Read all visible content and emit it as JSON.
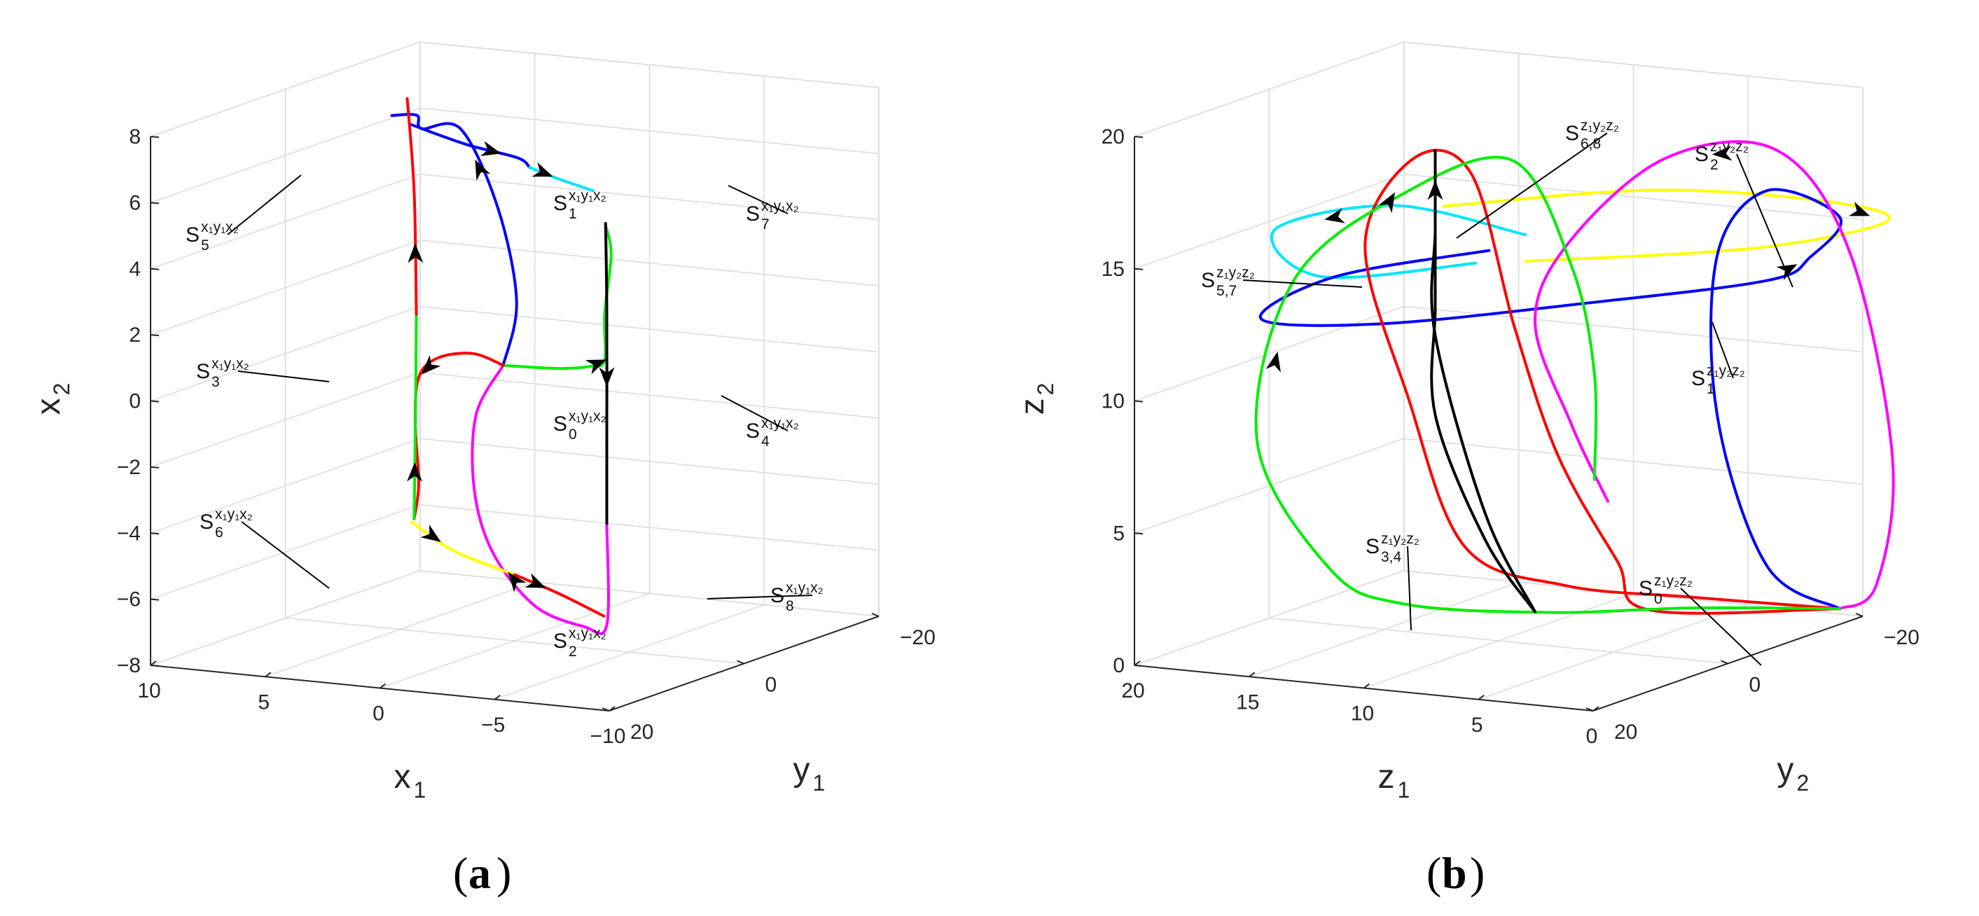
{
  "colors": {
    "blue": "#0000ff",
    "cyan": "#00e5ff",
    "green": "#00ee00",
    "black": "#000000",
    "red": "#ff0000",
    "magenta": "#ff00ff",
    "yellow": "#ffff00"
  },
  "chart_data": [
    {
      "id": "a",
      "type": "line",
      "panel_label": "a",
      "title": "",
      "axes": {
        "x": {
          "label": "x",
          "sub": "1",
          "ticks": [
            "10",
            "5",
            "0",
            "−5",
            "−10"
          ]
        },
        "y": {
          "label": "y",
          "sub": "1",
          "ticks": [
            "−20",
            "0",
            "20"
          ]
        },
        "z": {
          "label": "x",
          "sub": "2",
          "ticks": [
            "−8",
            "−6",
            "−4",
            "−2",
            "0",
            "2",
            "4",
            "6",
            "8"
          ]
        }
      },
      "xlim": [
        -10,
        10
      ],
      "ylim": [
        -20,
        20
      ],
      "zlim": [
        -8,
        8
      ],
      "grid": true,
      "annotations": [
        {
          "base": "S",
          "sub": "5",
          "sup": "x₁y₁x₂"
        },
        {
          "base": "S",
          "sub": "1",
          "sup": "x₁y₁x₂"
        },
        {
          "base": "S",
          "sub": "7",
          "sup": "x₁y₁x₂"
        },
        {
          "base": "S",
          "sub": "3",
          "sup": "x₁y₁x₂"
        },
        {
          "base": "S",
          "sub": "0",
          "sup": "x₁y₁x₂"
        },
        {
          "base": "S",
          "sub": "4",
          "sup": "x₁y₁x₂"
        },
        {
          "base": "S",
          "sub": "6",
          "sup": "x₁y₁x₂"
        },
        {
          "base": "S",
          "sub": "2",
          "sup": "x₁y₁x₂"
        },
        {
          "base": "S",
          "sub": "8",
          "sup": "x₁y₁x₂"
        }
      ],
      "series": [
        {
          "color": "blue",
          "points": [
            [
              0.5,
              0,
              0.3
            ],
            [
              0.8,
              -3,
              2
            ],
            [
              2.5,
              -6,
              4.5
            ],
            [
              5,
              -9,
              6.5
            ],
            [
              7,
              -10,
              6.3
            ],
            [
              7.5,
              -11,
              6.6
            ],
            [
              8,
              -9,
              6.7
            ]
          ]
        },
        {
          "color": "blue",
          "points": [
            [
              7.5,
              -10,
              6.4
            ],
            [
              3,
              -3,
              6.6
            ],
            [
              -1,
              3,
              6.9
            ],
            [
              -3,
              8,
              7.1
            ]
          ]
        },
        {
          "color": "cyan",
          "points": [
            [
              -3,
              8,
              7.1
            ],
            [
              -6,
              14,
              7.4
            ],
            [
              -9,
              19,
              7.6
            ]
          ]
        },
        {
          "color": "green",
          "points": [
            [
              0.5,
              0,
              0.3
            ],
            [
              -2,
              4,
              0.7
            ],
            [
              -5,
              10,
              1.3
            ],
            [
              -8,
              16,
              2
            ],
            [
              -9.5,
              19,
              2.5
            ],
            [
              -9.8,
              20,
              4
            ],
            [
              -9.2,
              17,
              5.5
            ],
            [
              -9.3,
              18,
              6.4
            ]
          ]
        },
        {
          "color": "black",
          "points": [
            [
              -9.4,
              18.5,
              6.6
            ],
            [
              -9.6,
              19,
              4
            ],
            [
              -9.6,
              19,
              0
            ],
            [
              -9.6,
              19,
              -2.5
            ]
          ]
        },
        {
          "color": "magenta",
          "points": [
            [
              -9.6,
              19,
              -2.5
            ],
            [
              -9.6,
              19,
              -5.5
            ],
            [
              -8,
              17,
              -5.8
            ],
            [
              -5,
              14,
              -5.6
            ],
            [
              -2,
              10,
              -4.5
            ],
            [
              0,
              6,
              -3
            ],
            [
              0.8,
              3,
              -1
            ],
            [
              0.5,
              0,
              0.3
            ]
          ]
        },
        {
          "color": "red",
          "points": [
            [
              0.5,
              0,
              0.3
            ],
            [
              3,
              -4,
              0.2
            ],
            [
              6,
              -9,
              -0.5
            ],
            [
              8,
              -13,
              -1.5
            ],
            [
              8.6,
              -14.5,
              -3
            ],
            [
              8.3,
              -14,
              -4.8
            ],
            [
              8.5,
              -14,
              -5.9
            ]
          ]
        },
        {
          "color": "green",
          "points": [
            [
              8.5,
              -14,
              -5.9
            ],
            [
              8.3,
              -13.5,
              -3
            ],
            [
              8.4,
              -14,
              0.3
            ]
          ]
        },
        {
          "color": "red",
          "points": [
            [
              8.4,
              -14,
              0.3
            ],
            [
              8.5,
              -14,
              4
            ],
            [
              8.8,
              -14,
              6.8
            ]
          ]
        },
        {
          "color": "yellow",
          "points": [
            [
              8.6,
              -14,
              -6
            ],
            [
              5,
              -8,
              -6.2
            ],
            [
              0,
              0,
              -6
            ]
          ]
        },
        {
          "color": "red",
          "points": [
            [
              0,
              0,
              -6
            ],
            [
              -4,
              7,
              -5.8
            ],
            [
              -8,
              14,
              -5.7
            ]
          ]
        }
      ]
    },
    {
      "id": "b",
      "type": "line",
      "panel_label": "b",
      "title": "",
      "axes": {
        "x": {
          "label": "z",
          "sub": "1",
          "ticks": [
            "20",
            "15",
            "10",
            "5",
            "0"
          ]
        },
        "y": {
          "label": "y",
          "sub": "2",
          "ticks": [
            "−20",
            "0",
            "20"
          ]
        },
        "z": {
          "label": "z",
          "sub": "2",
          "ticks": [
            "0",
            "5",
            "10",
            "15",
            "20"
          ]
        }
      },
      "xlim": [
        0,
        20
      ],
      "ylim": [
        -20,
        20
      ],
      "zlim": [
        0,
        20
      ],
      "grid": true,
      "annotations": [
        {
          "base": "S",
          "sub": "6,8",
          "sup": "z₁y₂z₂"
        },
        {
          "base": "S",
          "sub": "2",
          "sup": "z₁y₂z₂"
        },
        {
          "base": "S",
          "sub": "5,7",
          "sup": "z₁y₂z₂"
        },
        {
          "base": "S",
          "sub": "1",
          "sup": "z₁y₂z₂"
        },
        {
          "base": "S",
          "sub": "3,4",
          "sup": "z₁y₂z₂"
        },
        {
          "base": "S",
          "sub": "0",
          "sup": "z₁y₂z₂"
        }
      ],
      "series": [
        {
          "color": "yellow",
          "points": [
            [
              13,
              -2,
              16
            ],
            [
              6,
              -10,
              16.5
            ],
            [
              0,
              -16,
              16
            ],
            [
              -1,
              -20,
              15
            ],
            [
              3,
              -14,
              14.2
            ],
            [
              10,
              -4,
              14
            ]
          ]
        },
        {
          "color": "cyan",
          "points": [
            [
              10,
              -4,
              15
            ],
            [
              14,
              2,
              16.3
            ],
            [
              18,
              6,
              15.4
            ],
            [
              16,
              6,
              13.8
            ],
            [
              11,
              0,
              14.2
            ]
          ]
        },
        {
          "color": "blue",
          "points": [
            [
              11,
              -2,
              14.5
            ],
            [
              16,
              4,
              13.6
            ],
            [
              18,
              8,
              12.2
            ],
            [
              14,
              4,
              12
            ],
            [
              8,
              -6,
              12.4
            ],
            [
              3,
              -16,
              12.8
            ],
            [
              2,
              -19,
              13.5
            ],
            [
              1,
              -20,
              15
            ],
            [
              3,
              -16,
              16.2
            ],
            [
              4,
              -12,
              14
            ],
            [
              4,
              -12,
              8
            ],
            [
              3,
              -16,
              2
            ],
            [
              1,
              -20,
              0.2
            ]
          ]
        },
        {
          "color": "red",
          "points": [
            [
              1,
              -20,
              0.2
            ],
            [
              5,
              -12,
              1
            ],
            [
              8,
              -3,
              2
            ],
            [
              10,
              5,
              4
            ],
            [
              11,
              10,
              10
            ],
            [
              12,
              13,
              16
            ],
            [
              11,
              9,
              19
            ],
            [
              10,
              4,
              18
            ],
            [
              9,
              1,
              12
            ],
            [
              8,
              -2,
              7
            ],
            [
              6,
              -4,
              3
            ],
            [
              4,
              -2,
              1.5
            ],
            [
              1,
              -20,
              0.2
            ]
          ]
        },
        {
          "color": "magenta",
          "points": [
            [
              1,
              -20,
              0.2
            ],
            [
              0,
              -22,
              1
            ],
            [
              -1,
              -21,
              6
            ],
            [
              0,
              -18,
              14
            ],
            [
              2,
              -14,
              18
            ],
            [
              5,
              -8,
              18
            ],
            [
              8,
              -4,
              15
            ],
            [
              9,
              -2,
              12
            ],
            [
              8,
              -4,
              8
            ],
            [
              7,
              -6,
              5
            ]
          ]
        },
        {
          "color": "green",
          "points": [
            [
              1,
              -20,
              0.2
            ],
            [
              5,
              -12,
              0.6
            ],
            [
              9,
              -4,
              0.8
            ],
            [
              13,
              4,
              1.5
            ],
            [
              15,
              8,
              3
            ],
            [
              17,
              12,
              8
            ],
            [
              16,
              10,
              14
            ],
            [
              13,
              4,
              17
            ],
            [
              10,
              -2,
              18
            ],
            [
              8,
              -4,
              14
            ],
            [
              7,
              -4,
              10
            ],
            [
              7,
              -4,
              6
            ]
          ]
        },
        {
          "color": "black",
          "points": [
            [
              9,
              -2,
              1
            ],
            [
              10,
              2,
              4
            ],
            [
              11,
              6,
              9
            ],
            [
              11,
              6,
              13
            ],
            [
              11,
              6,
              16
            ],
            [
              11,
              6,
              19
            ],
            [
              11,
              6,
              16
            ],
            [
              11,
              6,
              12
            ],
            [
              10,
              2,
              5
            ],
            [
              9,
              -2,
              1
            ]
          ]
        }
      ]
    }
  ]
}
